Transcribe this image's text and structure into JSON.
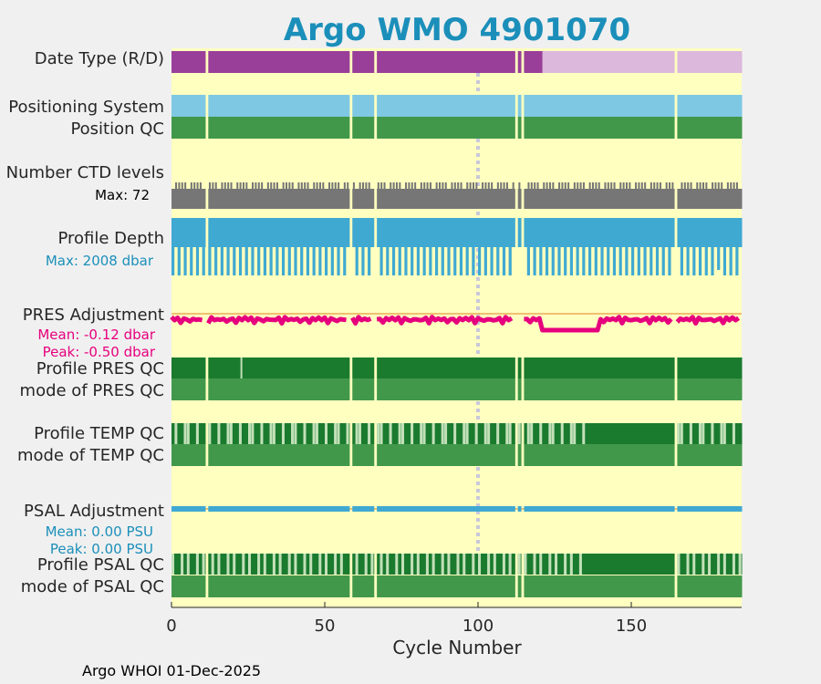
{
  "chart_data": {
    "type": "timeline",
    "title": "Argo WMO 4901070",
    "xlabel": "Cycle Number",
    "xlim": [
      0,
      186
    ],
    "xticks": [
      0,
      50,
      100,
      150
    ],
    "footer": "Argo WHOI 01-Dec-2025",
    "missing_cycles": [
      11,
      58,
      66,
      112,
      114,
      164
    ],
    "highlight_cycle": 100,
    "rows": {
      "date_type": {
        "label": "Date Type (R/D)",
        "realtime_range": [
          0,
          121
        ],
        "delayed_range": [
          121,
          186
        ],
        "colors": {
          "R": "#993f99",
          "D": "#dcb8dc"
        }
      },
      "positioning_system": {
        "label": "Positioning System",
        "color": "#7ec8e3"
      },
      "position_qc": {
        "label": "Position QC",
        "color": "#42984a"
      },
      "ctd_levels": {
        "label": "Number CTD levels",
        "max_label": "Max: 72",
        "color": "#767676"
      },
      "profile_depth": {
        "label": "Profile Depth",
        "max_label": "Max: 2008 dbar",
        "color": "#3fa9d2"
      },
      "pres_adjustment": {
        "label": "PRES Adjustment",
        "mean_label": "Mean: -0.12 dbar",
        "peak_label": "Peak: -0.50 dbar",
        "color": "#e6007e",
        "zero_line_color": "#f0c070",
        "depressed_range": [
          121,
          139
        ],
        "depressed_value": -0.5
      },
      "profile_pres_qc": {
        "label": "Profile PRES QC",
        "color": "#1a7a2e"
      },
      "mode_pres_qc": {
        "label": "mode of PRES QC",
        "color": "#42984a"
      },
      "profile_temp_qc": {
        "label": "Profile TEMP QC",
        "color": "#1a7a2e",
        "light_color": "#c2e0b8"
      },
      "mode_temp_qc": {
        "label": "mode of TEMP QC",
        "color": "#42984a"
      },
      "psal_adjustment": {
        "label": "PSAL Adjustment",
        "mean_label": "Mean: 0.00 PSU",
        "peak_label": "Peak: 0.00 PSU",
        "color": "#3fa9d2"
      },
      "profile_psal_qc": {
        "label": "Profile PSAL QC",
        "color": "#1a7a2e",
        "light_color": "#c2e0b8"
      },
      "mode_psal_qc": {
        "label": "mode of PSAL QC",
        "color": "#42984a"
      }
    },
    "colors": {
      "plot_background": "#ffffc0",
      "figure_background": "#f0f0f0",
      "highlight": "#c8c8dc"
    }
  }
}
